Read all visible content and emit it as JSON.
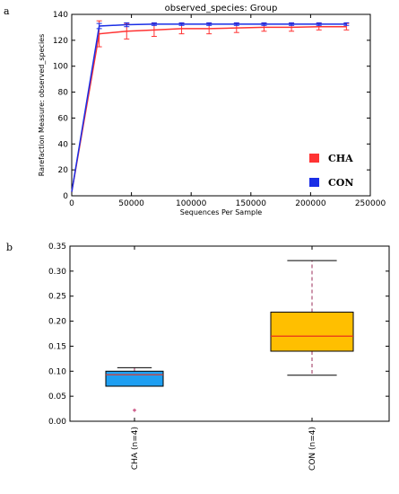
{
  "figure": {
    "panel_a_label": "a",
    "panel_b_label": "b"
  },
  "chart_data": [
    {
      "type": "line",
      "title": "observed_species: Group",
      "xlabel": "Sequences Per Sample",
      "ylabel": "Rarefaction Measure: observed_species",
      "xlim": [
        0,
        250000
      ],
      "ylim": [
        0,
        140
      ],
      "xticks": [
        0,
        50000,
        100000,
        150000,
        200000,
        250000
      ],
      "yticks": [
        0,
        20,
        40,
        60,
        80,
        100,
        120,
        140
      ],
      "x": [
        10,
        23000,
        46000,
        69000,
        92000,
        115000,
        138000,
        161000,
        184000,
        207000,
        230000
      ],
      "series": [
        {
          "name": "CHA",
          "color": "#ff3333",
          "values": [
            3,
            125,
            127,
            128,
            129,
            129,
            129.5,
            130,
            130,
            130.5,
            130.5
          ],
          "error": [
            0,
            10,
            6,
            5,
            4,
            4,
            3.5,
            3,
            3,
            2.5,
            2.5
          ]
        },
        {
          "name": "CON",
          "color": "#1a2ee6",
          "values": [
            3,
            131,
            132,
            132.5,
            132.5,
            132.5,
            132.5,
            132.5,
            132.5,
            132.5,
            132.5
          ],
          "error": [
            0,
            2,
            1.5,
            1,
            1,
            1,
            1,
            1,
            1,
            1,
            1
          ]
        }
      ],
      "legend_position": "lower-right",
      "grid": false
    },
    {
      "type": "box",
      "ylim": [
        0,
        0.35
      ],
      "yticks": [
        0.0,
        0.05,
        0.1,
        0.15,
        0.2,
        0.25,
        0.3,
        0.35
      ],
      "categories": [
        "CHA (n=4)",
        "CON (n=4)"
      ],
      "boxes": [
        {
          "name": "CHA (n=4)",
          "color": "#1e9ff2",
          "whisker_low": 0.07,
          "q1": 0.07,
          "median": 0.093,
          "q3": 0.1,
          "whisker_high": 0.107,
          "outliers": [
            0.022
          ]
        },
        {
          "name": "CON (n=4)",
          "color": "#ffbf00",
          "whisker_low": 0.092,
          "q1": 0.14,
          "median": 0.17,
          "q3": 0.218,
          "whisker_high": 0.321,
          "outliers": []
        }
      ],
      "grid": false
    }
  ]
}
